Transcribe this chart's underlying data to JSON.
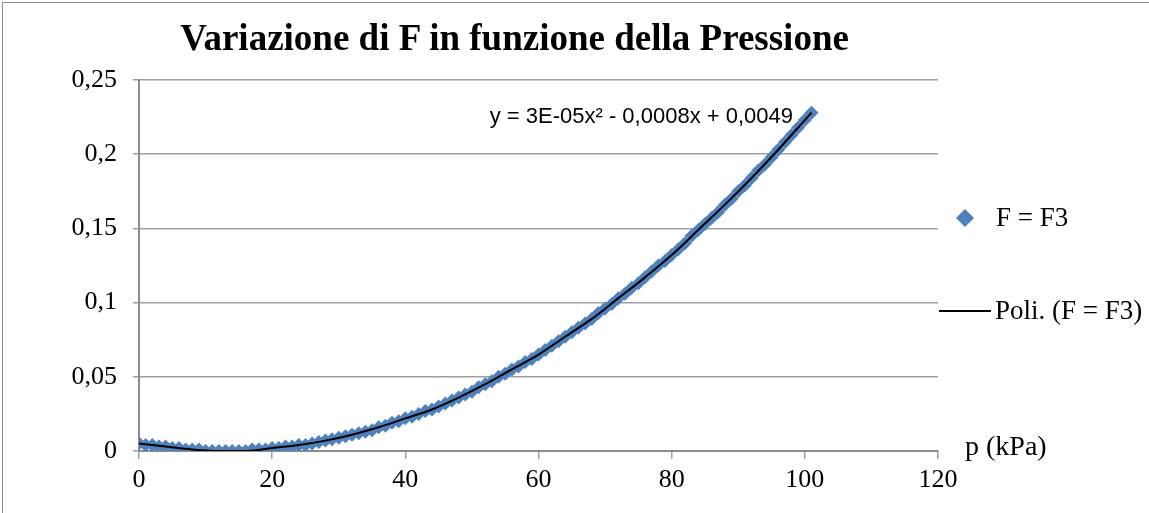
{
  "chart_data": {
    "type": "scatter",
    "title": "Variazione di F in funzione della Pressione",
    "xlabel": "p (kPa)",
    "annotations": [
      "y = 3E-05x² - 0,0008x + 0,0049"
    ],
    "xlim": [
      0,
      120
    ],
    "xticks": [
      0,
      20,
      40,
      60,
      80,
      100,
      120
    ],
    "ylim": [
      0,
      0.25
    ],
    "yticks": [
      0,
      {
        "value": 0.05,
        "label": "0,05"
      },
      {
        "value": 0.1,
        "label": "0,1"
      },
      {
        "value": 0.15,
        "label": "0,15"
      },
      {
        "value": 0.2,
        "label": "0,2"
      },
      {
        "value": 0.25,
        "label": "0,25"
      }
    ],
    "grid": "y",
    "legend": "right",
    "series": [
      {
        "name": "F = F3",
        "marker": "diamond",
        "color": "#4f81bd",
        "x": [
          0,
          1,
          2,
          3,
          4,
          5,
          6,
          7,
          8,
          9,
          10,
          11,
          12,
          13,
          14,
          15,
          16,
          17,
          18,
          19,
          20,
          21,
          22,
          23,
          24,
          25,
          26,
          27,
          28,
          29,
          30,
          31,
          32,
          33,
          34,
          35,
          36,
          37,
          38,
          39,
          40,
          41,
          42,
          43,
          44,
          45,
          46,
          47,
          48,
          49,
          50,
          51,
          52,
          53,
          54,
          55,
          56,
          57,
          58,
          59,
          60,
          61,
          62,
          63,
          64,
          65,
          66,
          67,
          68,
          69,
          70,
          71,
          72,
          73,
          74,
          75,
          76,
          77,
          78,
          79,
          80,
          81,
          82,
          83,
          84,
          85,
          86,
          87,
          88,
          89,
          90,
          91,
          92,
          93,
          94,
          95,
          96,
          97,
          98,
          99,
          100,
          101
        ],
        "values": [
          0.005,
          0.004,
          0.004,
          0.003,
          0.003,
          0.002,
          0.002,
          0.001,
          0.001,
          0.001,
          0.0,
          0.0,
          0.0,
          0.0,
          0.0,
          0.0,
          0.0,
          0.001,
          0.001,
          0.001,
          0.002,
          0.002,
          0.003,
          0.003,
          0.004,
          0.004,
          0.005,
          0.006,
          0.007,
          0.008,
          0.009,
          0.01,
          0.011,
          0.012,
          0.013,
          0.014,
          0.016,
          0.017,
          0.019,
          0.02,
          0.022,
          0.023,
          0.025,
          0.027,
          0.028,
          0.03,
          0.032,
          0.034,
          0.036,
          0.038,
          0.04,
          0.043,
          0.045,
          0.047,
          0.05,
          0.052,
          0.055,
          0.057,
          0.06,
          0.062,
          0.065,
          0.068,
          0.071,
          0.074,
          0.077,
          0.08,
          0.083,
          0.086,
          0.089,
          0.093,
          0.096,
          0.099,
          0.103,
          0.106,
          0.11,
          0.113,
          0.117,
          0.121,
          0.125,
          0.128,
          0.132,
          0.136,
          0.14,
          0.145,
          0.149,
          0.153,
          0.157,
          0.161,
          0.166,
          0.17,
          0.175,
          0.179,
          0.184,
          0.189,
          0.193,
          0.198,
          0.203,
          0.208,
          0.213,
          0.218,
          0.223,
          0.228
        ]
      },
      {
        "name": "Poli. (F = F3)",
        "type": "line",
        "marker": "none",
        "line_style": "solid",
        "color": "#000000",
        "x": [
          0,
          4,
          8,
          12,
          16,
          20,
          24,
          28,
          32,
          36,
          40,
          44,
          48,
          52,
          56,
          60,
          64,
          68,
          72,
          76,
          80,
          84,
          88,
          92,
          96,
          100,
          101
        ],
        "values": [
          0.005,
          0.003,
          0.001,
          0.0,
          0.0,
          0.002,
          0.004,
          0.007,
          0.011,
          0.016,
          0.022,
          0.028,
          0.036,
          0.045,
          0.055,
          0.065,
          0.077,
          0.089,
          0.103,
          0.117,
          0.132,
          0.149,
          0.166,
          0.184,
          0.203,
          0.223,
          0.228
        ]
      }
    ]
  }
}
